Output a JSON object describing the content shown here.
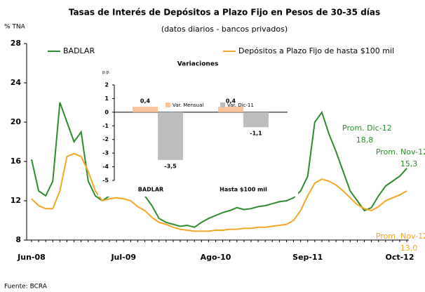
{
  "chart_data": [
    {
      "type": "line",
      "title": "Tasas de Interés de Depósitos a Plazo Fijo en Pesos de 30-35 días",
      "subtitle": "(datos diarios - bancos privados)",
      "ylabel": "% TNA",
      "source": "Fuente: BCRA",
      "categories": [
        "Jun-08",
        null,
        null,
        null,
        null,
        null,
        null,
        null,
        null,
        null,
        null,
        null,
        null,
        "Jul-09",
        null,
        null,
        null,
        null,
        null,
        null,
        null,
        null,
        null,
        null,
        null,
        null,
        "Ago-10",
        null,
        null,
        null,
        null,
        null,
        null,
        null,
        null,
        null,
        null,
        null,
        null,
        "Sep-11",
        null,
        null,
        null,
        null,
        null,
        null,
        null,
        null,
        null,
        null,
        null,
        null,
        "Oct-12",
        null
      ],
      "series": [
        {
          "name": "BADLAR",
          "color": "#2e8b2e",
          "values": [
            16.2,
            13,
            12.5,
            14,
            22,
            20,
            18,
            19,
            14,
            12.5,
            12,
            12.5,
            12.8,
            12.9,
            13,
            12.9,
            12.5,
            11.5,
            10.2,
            9.8,
            9.6,
            9.4,
            9.5,
            9.3,
            9.8,
            10.2,
            10.5,
            10.8,
            11,
            11.3,
            11.1,
            11.2,
            11.4,
            11.5,
            11.7,
            11.9,
            12,
            12.3,
            13,
            14.5,
            20,
            21,
            18.8,
            17,
            15,
            13,
            12,
            11,
            11.3,
            12.5,
            13.5,
            14,
            14.5,
            15.3
          ]
        },
        {
          "name": "Depósitos a Plazo Fijo de hasta $100 mil",
          "color": "#f5a623",
          "values": [
            12.2,
            11.5,
            11.2,
            11.2,
            13,
            16.5,
            16.8,
            16.5,
            15,
            13,
            12,
            12.2,
            12.3,
            12.2,
            12.0,
            11.4,
            11,
            10.3,
            9.8,
            9.6,
            9.3,
            9.1,
            9.0,
            8.9,
            8.9,
            8.9,
            9.0,
            9.0,
            9.1,
            9.1,
            9.2,
            9.2,
            9.3,
            9.3,
            9.4,
            9.5,
            9.6,
            10,
            11,
            12.5,
            13.8,
            14.2,
            14,
            13.6,
            13,
            12.3,
            11.6,
            11.2,
            11,
            11.4,
            12,
            12.3,
            12.6,
            13.0
          ]
        }
      ],
      "ylim": [
        8,
        28
      ],
      "yticks": [
        8,
        12,
        16,
        20,
        24,
        28
      ],
      "annotations": [
        {
          "text": "Prom. Dic-12",
          "color": "#2e8b2e"
        },
        {
          "text": "18,8",
          "color": "#2e8b2e"
        },
        {
          "text": "Prom. Nov-12",
          "color": "#2e8b2e"
        },
        {
          "text": "15,3",
          "color": "#2e8b2e"
        },
        {
          "text": "Prom. Nov-12",
          "color": "#f5a623"
        },
        {
          "text": "13,0",
          "color": "#f5a623"
        }
      ]
    },
    {
      "type": "bar",
      "title": "Variaciones",
      "ylabel": "p.p.",
      "categories": [
        "BADLAR",
        "Hasta $100 mil"
      ],
      "series": [
        {
          "name": "Var. Mensual",
          "color": "#f9c49a",
          "values": [
            0.4,
            0.4
          ],
          "value_labels": [
            "0,4",
            "0,4"
          ]
        },
        {
          "name": "Var. Dic-11",
          "color": "#bdbdbd",
          "values": [
            -3.5,
            -1.1
          ],
          "value_labels": [
            "-3,5",
            "-1,1"
          ]
        }
      ],
      "ylim": [
        -5,
        2
      ],
      "yticks": [
        -5,
        -4,
        -3,
        -2,
        -1,
        0,
        1,
        2
      ]
    }
  ]
}
